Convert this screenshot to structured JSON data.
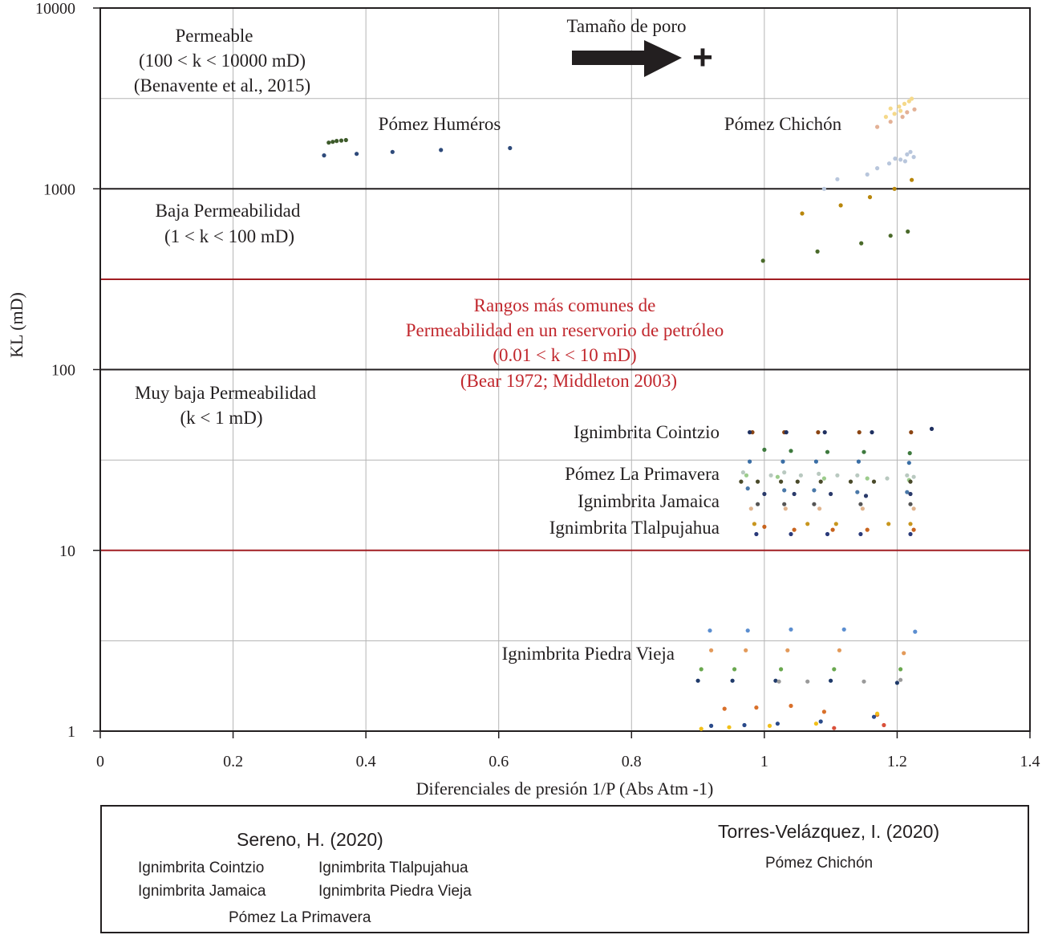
{
  "chart_data": {
    "type": "scatter",
    "xlabel": "Diferenciales de presión 1/P (Abs Atm -1)",
    "ylabel": "KL (mD)",
    "xlim": [
      0,
      1.4
    ],
    "ylim": [
      1,
      10000
    ],
    "yscale": "log",
    "x_ticks": [
      "0",
      "0.2",
      "0.4",
      "0.6",
      "0.8",
      "1",
      "1.2",
      "1.4"
    ],
    "y_ticks": [
      "1",
      "10",
      "100",
      "1000",
      "10000"
    ],
    "reference_lines": [
      {
        "name": "line-1000",
        "y": 1000,
        "color": "#231f20"
      },
      {
        "name": "line-100",
        "y": 100,
        "color": "#231f20"
      },
      {
        "name": "line-10-red",
        "y": 10,
        "color": "#a11d22"
      },
      {
        "name": "line-316-red",
        "y": 316,
        "color": "#a11d22"
      }
    ],
    "zone_labels": {
      "permeable": [
        "Permeable",
        "(100 < k < 10000 mD)",
        "(Benavente et al., 2015)"
      ],
      "baja": [
        "Baja Permeabilidad",
        "(1 < k < 100 mD)"
      ],
      "muy_baja": [
        "Muy baja Permeabilidad",
        "(k < 1 mD)"
      ],
      "rangos": [
        "Rangos más comunes de",
        "Permeabilidad en un reservorio de petróleo",
        "(0.01 < k < 10 mD)",
        "(Bear 1972; Middleton 2003)"
      ]
    },
    "pore_label": "Tamaño de poro",
    "pore_sign": "+",
    "series_labels": {
      "humeros": "Pómez Huméros",
      "chichon": "Pómez Chichón",
      "cointzio": "Ignimbrita Cointzio",
      "primavera": "Pómez La Primavera",
      "jamaica": "Ignimbrita Jamaica",
      "tlalpujahua": "Ignimbrita Tlalpujahua",
      "piedra_vieja": "Ignimbrita Piedra Vieja"
    },
    "series": [
      {
        "name": "Humeros blue",
        "color": "#2e4a7a",
        "points": [
          [
            0.337,
            1530
          ],
          [
            0.386,
            1560
          ],
          [
            0.44,
            1600
          ],
          [
            0.513,
            1640
          ],
          [
            0.617,
            1680
          ]
        ]
      },
      {
        "name": "Humeros green",
        "color": "#3d5a2a",
        "points": [
          [
            0.344,
            1800
          ],
          [
            0.35,
            1820
          ],
          [
            0.356,
            1840
          ],
          [
            0.363,
            1850
          ],
          [
            0.37,
            1860
          ]
        ]
      },
      {
        "name": "Chichon yellow",
        "color": "#f5d98a",
        "points": [
          [
            1.19,
            2780
          ],
          [
            1.203,
            2850
          ],
          [
            1.211,
            2950
          ],
          [
            1.218,
            3050
          ],
          [
            1.222,
            3150
          ],
          [
            1.205,
            2700
          ],
          [
            1.196,
            2600
          ],
          [
            1.183,
            2500
          ]
        ]
      },
      {
        "name": "Chichon peach",
        "color": "#e3b196",
        "points": [
          [
            1.17,
            2200
          ],
          [
            1.19,
            2350
          ],
          [
            1.208,
            2500
          ],
          [
            1.226,
            2750
          ],
          [
            1.215,
            2650
          ]
        ]
      },
      {
        "name": "Chichon light blue",
        "color": "#b8c6dc",
        "points": [
          [
            1.09,
            1000
          ],
          [
            1.11,
            1130
          ],
          [
            1.155,
            1200
          ],
          [
            1.17,
            1300
          ],
          [
            1.188,
            1380
          ],
          [
            1.205,
            1450
          ],
          [
            1.212,
            1420
          ],
          [
            1.215,
            1550
          ],
          [
            1.22,
            1600
          ],
          [
            1.225,
            1500
          ],
          [
            1.197,
            1470
          ]
        ]
      },
      {
        "name": "Chichon gold",
        "color": "#b8860b",
        "points": [
          [
            1.057,
            730
          ],
          [
            1.115,
            810
          ],
          [
            1.159,
            900
          ],
          [
            1.196,
            1000
          ],
          [
            1.222,
            1120
          ]
        ]
      },
      {
        "name": "Chichon green",
        "color": "#4a6a2a",
        "points": [
          [
            0.998,
            400
          ],
          [
            1.08,
            450
          ],
          [
            1.146,
            500
          ],
          [
            1.19,
            550
          ],
          [
            1.216,
            580
          ]
        ]
      },
      {
        "name": "Cointzio brown",
        "color": "#8b4513",
        "points": [
          [
            0.982,
            45
          ],
          [
            1.03,
            45
          ],
          [
            1.081,
            45
          ],
          [
            1.143,
            45
          ],
          [
            1.221,
            45
          ]
        ]
      },
      {
        "name": "Cointzio navy",
        "color": "#1f3060",
        "points": [
          [
            0.978,
            45
          ],
          [
            1.033,
            45
          ],
          [
            1.091,
            45
          ],
          [
            1.162,
            45
          ],
          [
            1.252,
            47
          ]
        ]
      },
      {
        "name": "Cointzio green",
        "color": "#3e7a3e",
        "points": [
          [
            1.0,
            36
          ],
          [
            1.04,
            35.5
          ],
          [
            1.095,
            35
          ],
          [
            1.15,
            35
          ],
          [
            1.219,
            34.5
          ]
        ]
      },
      {
        "name": "Cointzio blue",
        "color": "#3a6ea5",
        "points": [
          [
            0.978,
            31
          ],
          [
            1.028,
            31
          ],
          [
            1.078,
            31
          ],
          [
            1.142,
            31
          ],
          [
            1.218,
            30.5
          ]
        ]
      },
      {
        "name": "Primavera light",
        "color": "#b9c9c0",
        "points": [
          [
            0.968,
            27
          ],
          [
            1.01,
            26
          ],
          [
            1.03,
            27
          ],
          [
            1.055,
            26
          ],
          [
            1.082,
            26.5
          ],
          [
            1.11,
            26
          ],
          [
            1.14,
            26
          ],
          [
            1.185,
            25
          ],
          [
            1.215,
            26
          ],
          [
            1.225,
            25.5
          ]
        ]
      },
      {
        "name": "Primavera light green",
        "color": "#9ccc8c",
        "points": [
          [
            0.973,
            26
          ],
          [
            1.02,
            25.5
          ],
          [
            1.09,
            25
          ],
          [
            1.155,
            25
          ],
          [
            1.218,
            24.5
          ]
        ]
      },
      {
        "name": "Primavera dark",
        "color": "#4a4a2a",
        "points": [
          [
            0.965,
            24
          ],
          [
            0.99,
            24
          ],
          [
            1.025,
            24
          ],
          [
            1.05,
            24
          ],
          [
            1.085,
            24
          ],
          [
            1.13,
            24
          ],
          [
            1.165,
            24
          ],
          [
            1.22,
            24
          ]
        ]
      },
      {
        "name": "Jamaica blue",
        "color": "#4a78a8",
        "points": [
          [
            0.975,
            22
          ],
          [
            1.03,
            21.5
          ],
          [
            1.075,
            21.5
          ],
          [
            1.14,
            21
          ],
          [
            1.215,
            21
          ]
        ]
      },
      {
        "name": "Jamaica navy",
        "color": "#2a3a6a",
        "points": [
          [
            1.0,
            20.5
          ],
          [
            1.045,
            20.5
          ],
          [
            1.1,
            20.5
          ],
          [
            1.153,
            20
          ],
          [
            1.22,
            20.5
          ]
        ]
      },
      {
        "name": "Jamaica gray",
        "color": "#555555",
        "points": [
          [
            0.99,
            18
          ],
          [
            1.03,
            18
          ],
          [
            1.075,
            18
          ],
          [
            1.145,
            18
          ],
          [
            1.22,
            18
          ]
        ]
      },
      {
        "name": "Jamaica peach",
        "color": "#e0b48e",
        "points": [
          [
            0.98,
            17
          ],
          [
            1.032,
            17
          ],
          [
            1.083,
            17
          ],
          [
            1.148,
            17
          ],
          [
            1.225,
            17
          ]
        ]
      },
      {
        "name": "Tlalpujahua gold",
        "color": "#c8961e",
        "points": [
          [
            0.985,
            14
          ],
          [
            1.065,
            14
          ],
          [
            1.108,
            14
          ],
          [
            1.187,
            14
          ],
          [
            1.22,
            14
          ]
        ]
      },
      {
        "name": "Tlalpujahua orange",
        "color": "#c8641e",
        "points": [
          [
            1.0,
            13.5
          ],
          [
            1.045,
            13
          ],
          [
            1.103,
            13
          ],
          [
            1.155,
            13
          ],
          [
            1.225,
            13
          ]
        ]
      },
      {
        "name": "Tlalpujahua navy",
        "color": "#2a3a7a",
        "points": [
          [
            0.988,
            12.3
          ],
          [
            1.04,
            12.3
          ],
          [
            1.095,
            12.3
          ],
          [
            1.145,
            12.3
          ],
          [
            1.22,
            12.3
          ]
        ]
      },
      {
        "name": "Piedra Vieja blue",
        "color": "#5b8ed0",
        "points": [
          [
            0.918,
            3.6
          ],
          [
            0.975,
            3.6
          ],
          [
            1.04,
            3.65
          ],
          [
            1.12,
            3.65
          ],
          [
            1.227,
            3.55
          ]
        ]
      },
      {
        "name": "Piedra Vieja orange",
        "color": "#e39a5a",
        "points": [
          [
            0.92,
            2.8
          ],
          [
            0.972,
            2.8
          ],
          [
            1.035,
            2.8
          ],
          [
            1.113,
            2.8
          ],
          [
            1.21,
            2.7
          ]
        ]
      },
      {
        "name": "Piedra Vieja green",
        "color": "#6aa84f",
        "points": [
          [
            0.905,
            2.2
          ],
          [
            0.955,
            2.2
          ],
          [
            1.025,
            2.2
          ],
          [
            1.105,
            2.2
          ],
          [
            1.205,
            2.2
          ]
        ]
      },
      {
        "name": "Piedra Vieja navy",
        "color": "#1f3a6a",
        "points": [
          [
            0.9,
            1.9
          ],
          [
            0.952,
            1.9
          ],
          [
            1.017,
            1.9
          ],
          [
            1.1,
            1.9
          ],
          [
            1.2,
            1.85
          ]
        ]
      },
      {
        "name": "Piedra Vieja gray",
        "color": "#9a9a9a",
        "points": [
          [
            1.022,
            1.88
          ],
          [
            1.065,
            1.88
          ],
          [
            1.15,
            1.88
          ],
          [
            1.205,
            1.92
          ]
        ]
      },
      {
        "name": "Piedra Vieja orange low",
        "color": "#d9702a",
        "points": [
          [
            0.94,
            1.33
          ],
          [
            0.988,
            1.35
          ],
          [
            1.04,
            1.38
          ],
          [
            1.09,
            1.28
          ],
          [
            1.17,
            1.23
          ]
        ]
      },
      {
        "name": "Piedra Vieja navy low",
        "color": "#2a4a8a",
        "points": [
          [
            0.92,
            1.07
          ],
          [
            0.97,
            1.08
          ],
          [
            1.02,
            1.1
          ],
          [
            1.085,
            1.13
          ],
          [
            1.165,
            1.2
          ]
        ]
      },
      {
        "name": "Piedra Vieja yellow",
        "color": "#f2c01a",
        "points": [
          [
            0.905,
            1.03
          ],
          [
            0.947,
            1.05
          ],
          [
            1.008,
            1.07
          ],
          [
            1.078,
            1.1
          ],
          [
            1.17,
            1.25
          ]
        ]
      },
      {
        "name": "Piedra Vieja red",
        "color": "#d9503a",
        "points": [
          [
            1.105,
            1.04
          ],
          [
            1.18,
            1.08
          ]
        ]
      }
    ]
  },
  "legend": {
    "sereno_title": "Sereno, H. (2020)",
    "sereno_items": [
      "Ignimbrita Cointzio",
      "Ignimbrita Tlalpujahua",
      "Ignimbrita Jamaica",
      "Ignimbrita Piedra Vieja",
      "Pómez La Primavera"
    ],
    "torres_title": "Torres-Velázquez, I. (2020)",
    "torres_items": [
      "Pómez Chichón"
    ]
  }
}
